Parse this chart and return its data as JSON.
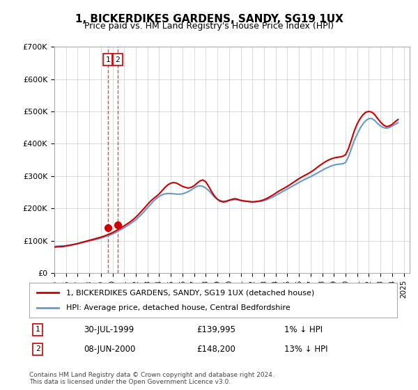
{
  "title": "1, BICKERDIKES GARDENS, SANDY, SG19 1UX",
  "subtitle": "Price paid vs. HM Land Registry's House Price Index (HPI)",
  "xlabel": "",
  "ylabel": "",
  "ylim": [
    0,
    700000
  ],
  "yticks": [
    0,
    100000,
    200000,
    300000,
    400000,
    500000,
    600000,
    700000
  ],
  "ytick_labels": [
    "£0",
    "£100K",
    "£200K",
    "£300K",
    "£400K",
    "£500K",
    "£600K",
    "£700K"
  ],
  "xlim_start": 1995.0,
  "xlim_end": 2025.5,
  "hpi_color": "#6699cc",
  "price_color": "#cc0000",
  "sale_marker_color": "#cc0000",
  "grid_color": "#cccccc",
  "background_color": "#ffffff",
  "legend_label_red": "1, BICKERDIKES GARDENS, SANDY, SG19 1UX (detached house)",
  "legend_label_blue": "HPI: Average price, detached house, Central Bedfordshire",
  "sale1_label": "1",
  "sale1_date": "30-JUL-1999",
  "sale1_price": "£139,995",
  "sale1_hpi": "1% ↓ HPI",
  "sale1_x": 1999.58,
  "sale1_y": 139995,
  "sale2_label": "2",
  "sale2_date": "08-JUN-2000",
  "sale2_price": "£148,200",
  "sale2_hpi": "13% ↓ HPI",
  "sale2_x": 2000.44,
  "sale2_y": 148200,
  "footer": "Contains HM Land Registry data © Crown copyright and database right 2024.\nThis data is licensed under the Open Government Licence v3.0.",
  "hpi_years": [
    1995.0,
    1995.25,
    1995.5,
    1995.75,
    1996.0,
    1996.25,
    1996.5,
    1996.75,
    1997.0,
    1997.25,
    1997.5,
    1997.75,
    1998.0,
    1998.25,
    1998.5,
    1998.75,
    1999.0,
    1999.25,
    1999.5,
    1999.75,
    2000.0,
    2000.25,
    2000.5,
    2000.75,
    2001.0,
    2001.25,
    2001.5,
    2001.75,
    2002.0,
    2002.25,
    2002.5,
    2002.75,
    2003.0,
    2003.25,
    2003.5,
    2003.75,
    2004.0,
    2004.25,
    2004.5,
    2004.75,
    2005.0,
    2005.25,
    2005.5,
    2005.75,
    2006.0,
    2006.25,
    2006.5,
    2006.75,
    2007.0,
    2007.25,
    2007.5,
    2007.75,
    2008.0,
    2008.25,
    2008.5,
    2008.75,
    2009.0,
    2009.25,
    2009.5,
    2009.75,
    2010.0,
    2010.25,
    2010.5,
    2010.75,
    2011.0,
    2011.25,
    2011.5,
    2011.75,
    2012.0,
    2012.25,
    2012.5,
    2012.75,
    2013.0,
    2013.25,
    2013.5,
    2013.75,
    2014.0,
    2014.25,
    2014.5,
    2014.75,
    2015.0,
    2015.25,
    2015.5,
    2015.75,
    2016.0,
    2016.25,
    2016.5,
    2016.75,
    2017.0,
    2017.25,
    2017.5,
    2017.75,
    2018.0,
    2018.25,
    2018.5,
    2018.75,
    2019.0,
    2019.25,
    2019.5,
    2019.75,
    2020.0,
    2020.25,
    2020.5,
    2020.75,
    2021.0,
    2021.25,
    2021.5,
    2021.75,
    2022.0,
    2022.25,
    2022.5,
    2022.75,
    2023.0,
    2023.25,
    2023.5,
    2023.75,
    2024.0,
    2024.25,
    2024.5
  ],
  "hpi_values": [
    82000,
    83000,
    83500,
    84000,
    85000,
    86000,
    87500,
    89000,
    91000,
    93000,
    95000,
    97000,
    99000,
    101000,
    103000,
    105000,
    108000,
    111000,
    114000,
    117000,
    121000,
    125000,
    130000,
    135000,
    140000,
    146000,
    152000,
    158000,
    165000,
    173000,
    182000,
    192000,
    202000,
    212000,
    222000,
    230000,
    237000,
    242000,
    245000,
    246000,
    246000,
    245000,
    244000,
    244000,
    245000,
    248000,
    252000,
    257000,
    263000,
    268000,
    270000,
    268000,
    263000,
    255000,
    245000,
    235000,
    228000,
    224000,
    222000,
    223000,
    225000,
    226000,
    227000,
    226000,
    224000,
    223000,
    222000,
    221000,
    220000,
    220000,
    221000,
    222000,
    224000,
    227000,
    231000,
    235000,
    240000,
    245000,
    250000,
    255000,
    260000,
    265000,
    270000,
    275000,
    280000,
    285000,
    290000,
    294000,
    298000,
    303000,
    308000,
    313000,
    318000,
    323000,
    327000,
    331000,
    334000,
    336000,
    337000,
    338000,
    342000,
    360000,
    385000,
    410000,
    430000,
    448000,
    462000,
    472000,
    478000,
    478000,
    472000,
    463000,
    455000,
    450000,
    448000,
    450000,
    455000,
    460000,
    465000
  ],
  "price_years": [
    1995.0,
    1995.25,
    1995.5,
    1995.75,
    1996.0,
    1996.25,
    1996.5,
    1996.75,
    1997.0,
    1997.25,
    1997.5,
    1997.75,
    1998.0,
    1998.25,
    1998.5,
    1998.75,
    1999.0,
    1999.25,
    1999.5,
    1999.75,
    2000.0,
    2000.25,
    2000.5,
    2000.75,
    2001.0,
    2001.25,
    2001.5,
    2001.75,
    2002.0,
    2002.25,
    2002.5,
    2002.75,
    2003.0,
    2003.25,
    2003.5,
    2003.75,
    2004.0,
    2004.25,
    2004.5,
    2004.75,
    2005.0,
    2005.25,
    2005.5,
    2005.75,
    2006.0,
    2006.25,
    2006.5,
    2006.75,
    2007.0,
    2007.25,
    2007.5,
    2007.75,
    2008.0,
    2008.25,
    2008.5,
    2008.75,
    2009.0,
    2009.25,
    2009.5,
    2009.75,
    2010.0,
    2010.25,
    2010.5,
    2010.75,
    2011.0,
    2011.25,
    2011.5,
    2011.75,
    2012.0,
    2012.25,
    2012.5,
    2012.75,
    2013.0,
    2013.25,
    2013.5,
    2013.75,
    2014.0,
    2014.25,
    2014.5,
    2014.75,
    2015.0,
    2015.25,
    2015.5,
    2015.75,
    2016.0,
    2016.25,
    2016.5,
    2016.75,
    2017.0,
    2017.25,
    2017.5,
    2017.75,
    2018.0,
    2018.25,
    2018.5,
    2018.75,
    2019.0,
    2019.25,
    2019.5,
    2019.75,
    2020.0,
    2020.25,
    2020.5,
    2020.75,
    2021.0,
    2021.25,
    2021.5,
    2021.75,
    2022.0,
    2022.25,
    2022.5,
    2022.75,
    2023.0,
    2023.25,
    2023.5,
    2023.75,
    2024.0,
    2024.25,
    2024.5
  ],
  "price_values": [
    80000,
    81000,
    81500,
    82000,
    83500,
    85000,
    87000,
    89000,
    91000,
    93500,
    96000,
    98500,
    101000,
    103500,
    106000,
    108500,
    111000,
    114000,
    117500,
    121000,
    125000,
    130000,
    135000,
    140000,
    146000,
    152000,
    158000,
    165000,
    173000,
    182000,
    192000,
    202000,
    212000,
    222000,
    230000,
    237000,
    245000,
    255000,
    265000,
    273000,
    278000,
    280000,
    278000,
    273000,
    268000,
    265000,
    263000,
    265000,
    270000,
    278000,
    285000,
    288000,
    282000,
    268000,
    252000,
    238000,
    228000,
    222000,
    220000,
    221000,
    225000,
    228000,
    230000,
    228000,
    225000,
    223000,
    222000,
    221000,
    220000,
    221000,
    222000,
    224000,
    227000,
    231000,
    236000,
    241000,
    247000,
    253000,
    258000,
    263000,
    268000,
    274000,
    280000,
    286000,
    292000,
    297000,
    302000,
    307000,
    312000,
    318000,
    325000,
    332000,
    338000,
    344000,
    349000,
    353000,
    356000,
    358000,
    359000,
    361000,
    366000,
    385000,
    412000,
    440000,
    462000,
    478000,
    490000,
    498000,
    500000,
    498000,
    490000,
    478000,
    467000,
    458000,
    453000,
    455000,
    460000,
    468000,
    475000
  ],
  "xtick_years": [
    1995,
    1996,
    1997,
    1998,
    1999,
    2000,
    2001,
    2002,
    2003,
    2004,
    2005,
    2006,
    2007,
    2008,
    2009,
    2010,
    2011,
    2012,
    2013,
    2014,
    2015,
    2016,
    2017,
    2018,
    2019,
    2020,
    2021,
    2022,
    2023,
    2024,
    2025
  ]
}
